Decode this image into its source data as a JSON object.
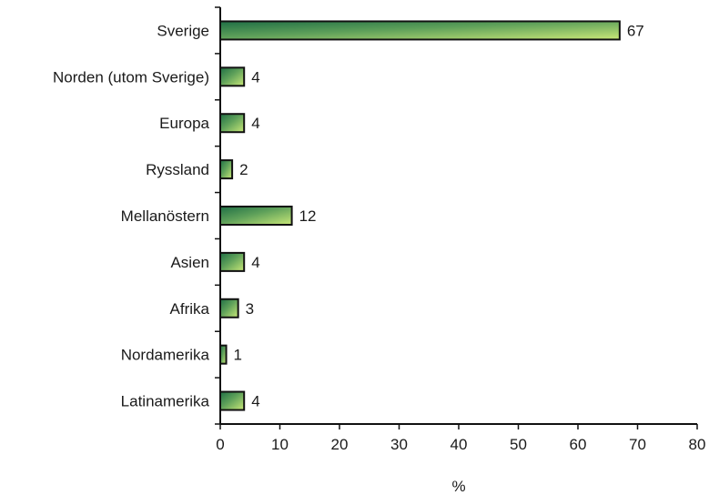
{
  "chart_data": {
    "type": "bar",
    "orientation": "horizontal",
    "categories": [
      "Sverige",
      "Norden (utom Sverige)",
      "Europa",
      "Ryssland",
      "Mellanöstern",
      "Asien",
      "Afrika",
      "Nordamerika",
      "Latinamerika"
    ],
    "values": [
      67,
      4,
      4,
      2,
      12,
      4,
      3,
      1,
      4
    ],
    "data_labels": [
      "67",
      "4",
      "4",
      "2",
      "12",
      "4",
      "3",
      "1",
      "4"
    ],
    "title": "",
    "xlabel": "%",
    "ylabel": "",
    "xlim": [
      0,
      80
    ],
    "xticks": [
      0,
      10,
      20,
      30,
      40,
      50,
      60,
      70,
      80
    ],
    "grid": false,
    "legend": "none",
    "colors": {
      "bar_dark": "#1f6e45",
      "bar_mid": "#5fa15a",
      "bar_light": "#c9e878",
      "bar_edge": "#111111",
      "axis": "#111111"
    }
  }
}
